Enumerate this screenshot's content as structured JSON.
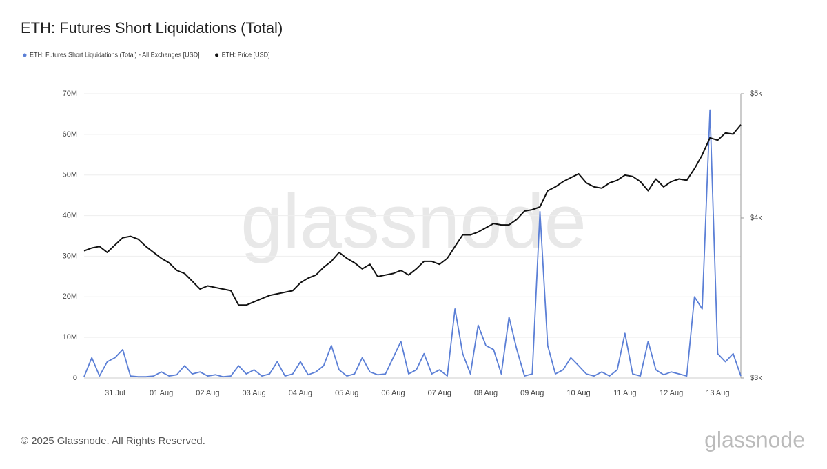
{
  "chart_data": {
    "type": "line",
    "title": "ETH: Futures Short Liquidations (Total)",
    "watermark": "glassnode",
    "footer": "© 2025 Glassnode. All Rights Reserved.",
    "logo": "glassnode",
    "categories": [
      null,
      null,
      null,
      null,
      "31 Jul",
      null,
      null,
      null,
      null,
      null,
      "01 Aug",
      null,
      null,
      null,
      null,
      null,
      "02 Aug",
      null,
      null,
      null,
      null,
      null,
      "03 Aug",
      null,
      null,
      null,
      null,
      null,
      "04 Aug",
      null,
      null,
      null,
      null,
      null,
      "05 Aug",
      null,
      null,
      null,
      null,
      null,
      "06 Aug",
      null,
      null,
      null,
      null,
      null,
      "07 Aug",
      null,
      null,
      null,
      null,
      null,
      "08 Aug",
      null,
      null,
      null,
      null,
      null,
      "09 Aug",
      null,
      null,
      null,
      null,
      null,
      "10 Aug",
      null,
      null,
      null,
      null,
      null,
      "11 Aug",
      null,
      null,
      null,
      null,
      null,
      "12 Aug",
      null,
      null,
      null,
      null,
      null,
      "13 Aug",
      null,
      null,
      null
    ],
    "series": [
      {
        "name": "ETH: Futures Short Liquidations (Total) - All Exchanges [USD]",
        "color": "#5b7fd6",
        "values": [
          300000,
          5000000,
          500000,
          4000000,
          5000000,
          7000000,
          500000,
          300000,
          300000,
          500000,
          1500000,
          500000,
          800000,
          3000000,
          1000000,
          1500000,
          500000,
          800000,
          300000,
          500000,
          3000000,
          1000000,
          2000000,
          500000,
          1000000,
          4000000,
          500000,
          1000000,
          4000000,
          800000,
          1500000,
          3000000,
          8000000,
          2000000,
          500000,
          1000000,
          5000000,
          1500000,
          800000,
          1000000,
          5000000,
          9000000,
          1000000,
          2000000,
          6000000,
          1000000,
          2000000,
          500000,
          17000000,
          6000000,
          1000000,
          13000000,
          8000000,
          7000000,
          1000000,
          15000000,
          7000000,
          500000,
          1000000,
          41000000,
          8000000,
          1000000,
          2000000,
          5000000,
          3000000,
          1000000,
          500000,
          1500000,
          500000,
          2000000,
          11000000,
          1000000,
          500000,
          9000000,
          2000000,
          800000,
          1500000,
          1000000,
          500000,
          20000000,
          17000000,
          66000000,
          6000000,
          4000000,
          6000000,
          500000
        ]
      },
      {
        "name": "ETH: Price [USD]",
        "color": "#111111",
        "axis": "y2",
        "values": [
          3770,
          3790,
          3800,
          3760,
          3810,
          3860,
          3870,
          3850,
          3800,
          3760,
          3720,
          3690,
          3640,
          3620,
          3570,
          3520,
          3540,
          3530,
          3520,
          3510,
          3420,
          3420,
          3440,
          3460,
          3480,
          3490,
          3500,
          3510,
          3560,
          3590,
          3610,
          3660,
          3700,
          3760,
          3720,
          3690,
          3650,
          3680,
          3600,
          3610,
          3620,
          3640,
          3610,
          3650,
          3700,
          3700,
          3680,
          3720,
          3800,
          3880,
          3880,
          3900,
          3930,
          3960,
          3950,
          3950,
          3990,
          4050,
          4060,
          4080,
          4200,
          4230,
          4270,
          4300,
          4330,
          4260,
          4230,
          4220,
          4260,
          4280,
          4320,
          4310,
          4270,
          4200,
          4290,
          4230,
          4270,
          4290,
          4280,
          4370,
          4480,
          4620,
          4600,
          4660,
          4650,
          4730
        ]
      }
    ],
    "ylim": [
      0,
      70000000
    ],
    "yticks": [
      0,
      {
        "value": 10000000,
        "label": "10M"
      },
      {
        "value": 20000000,
        "label": "20M"
      },
      {
        "value": 30000000,
        "label": "30M"
      },
      {
        "value": 40000000,
        "label": "40M"
      },
      {
        "value": 50000000,
        "label": "50M"
      },
      {
        "value": 60000000,
        "label": "60M"
      },
      {
        "value": 70000000,
        "label": "70M"
      }
    ],
    "y2lim": [
      3000,
      5000
    ],
    "y2scale": "log",
    "y2ticks": [
      {
        "value": 3000,
        "label": "$3k"
      },
      {
        "value": 4000,
        "label": "$4k"
      },
      {
        "value": 5000,
        "label": "$5k"
      }
    ],
    "grid": true
  }
}
